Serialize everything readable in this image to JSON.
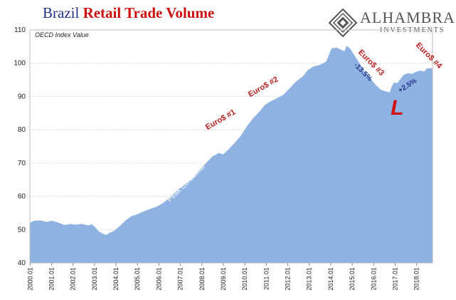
{
  "title": {
    "part1": "Brazil ",
    "part2": "Retail Trade Volume"
  },
  "logo": {
    "name": "ALHAMBRA",
    "sub": "INVESTMENTS",
    "icon": "alhambra-diamond-logo"
  },
  "colors": {
    "area": "#8eb2e2",
    "annot_red": "#b41e1e",
    "annot_blue": "#26328a",
    "L_red": "#d01010"
  },
  "chart_data": {
    "type": "area",
    "ylabel": "OECD Index Value",
    "ylim": [
      40,
      110
    ],
    "yticks": [
      "40",
      "50",
      "60",
      "70",
      "80",
      "90",
      "100",
      "110"
    ],
    "xticks": [
      "2000.01",
      "2001.01",
      "2002.01",
      "2003.01",
      "2004.01",
      "2005.01",
      "2006.01",
      "2007.01",
      "2008.01",
      "2009.01",
      "2010.01",
      "2011.01",
      "2012.01",
      "2013.01",
      "2014.01",
      "2015.01",
      "2016.01",
      "2017.01",
      "2018.01"
    ],
    "x_range": [
      2000.0,
      2018.75
    ],
    "grid": true,
    "series": [
      {
        "values": [
          [
            2000.0,
            52
          ],
          [
            2000.2,
            52.7
          ],
          [
            2000.5,
            52.8
          ],
          [
            2000.8,
            52.3
          ],
          [
            2001.0,
            52.7
          ],
          [
            2001.3,
            52.2
          ],
          [
            2001.6,
            51.4
          ],
          [
            2001.9,
            51.7
          ],
          [
            2002.1,
            51.5
          ],
          [
            2002.4,
            51.7
          ],
          [
            2002.7,
            51.3
          ],
          [
            2002.9,
            51.6
          ],
          [
            2003.1,
            50.3
          ],
          [
            2003.2,
            49.5
          ],
          [
            2003.4,
            48.8
          ],
          [
            2003.55,
            48.4
          ],
          [
            2003.7,
            49
          ],
          [
            2003.9,
            49.6
          ],
          [
            2004.1,
            50.6
          ],
          [
            2004.3,
            51.8
          ],
          [
            2004.5,
            53
          ],
          [
            2004.75,
            54.1
          ],
          [
            2005.0,
            54.6
          ],
          [
            2005.3,
            55.5
          ],
          [
            2005.6,
            56.2
          ],
          [
            2005.9,
            56.9
          ],
          [
            2006.2,
            58
          ],
          [
            2006.5,
            59.5
          ],
          [
            2006.75,
            61.2
          ],
          [
            2007.0,
            62.5
          ],
          [
            2007.3,
            64
          ],
          [
            2007.6,
            65.5
          ],
          [
            2007.9,
            68
          ],
          [
            2008.2,
            70
          ],
          [
            2008.5,
            72
          ],
          [
            2008.8,
            73
          ],
          [
            2009.0,
            72.6
          ],
          [
            2009.2,
            73.8
          ],
          [
            2009.5,
            75.8
          ],
          [
            2009.8,
            78
          ],
          [
            2010.1,
            81
          ],
          [
            2010.4,
            83.5
          ],
          [
            2010.7,
            85.5
          ],
          [
            2010.95,
            87.5
          ],
          [
            2011.2,
            88.5
          ],
          [
            2011.5,
            89.5
          ],
          [
            2011.8,
            90.5
          ],
          [
            2012.1,
            92.5
          ],
          [
            2012.4,
            94.5
          ],
          [
            2012.7,
            96
          ],
          [
            2012.95,
            98
          ],
          [
            2013.2,
            99
          ],
          [
            2013.5,
            99.5
          ],
          [
            2013.8,
            100.5
          ],
          [
            2014.05,
            104.5
          ],
          [
            2014.3,
            104.7
          ],
          [
            2014.5,
            104
          ],
          [
            2014.65,
            103.6
          ],
          [
            2014.75,
            105.3
          ],
          [
            2014.9,
            104.5
          ],
          [
            2015.1,
            102.5
          ],
          [
            2015.35,
            100
          ],
          [
            2015.6,
            97.5
          ],
          [
            2015.85,
            95.5
          ],
          [
            2016.1,
            93.5
          ],
          [
            2016.35,
            92
          ],
          [
            2016.6,
            91.5
          ],
          [
            2016.75,
            91.2
          ],
          [
            2016.85,
            93
          ],
          [
            2016.95,
            94.2
          ],
          [
            2017.1,
            94
          ],
          [
            2017.25,
            95.2
          ],
          [
            2017.4,
            96.5
          ],
          [
            2017.6,
            97
          ],
          [
            2017.8,
            96.8
          ],
          [
            2018.0,
            97.5
          ],
          [
            2018.2,
            97.8
          ],
          [
            2018.35,
            97.5
          ],
          [
            2018.5,
            98.5
          ],
          [
            2018.75,
            98.5
          ]
        ]
      }
    ],
    "annotations": [
      {
        "text": "Euro$ #1",
        "color": "red",
        "x": 2008.3,
        "y": 79.5,
        "angle": -30,
        "size": 11
      },
      {
        "text": "Euro$ #2",
        "color": "red",
        "x": 2010.3,
        "y": 89.5,
        "angle": -30,
        "size": 11
      },
      {
        "text": "Euro$ #3",
        "color": "red",
        "x": 2015.2,
        "y": 103,
        "angle": 45,
        "size": 11
      },
      {
        "text": "Euro$ #4",
        "color": "red",
        "x": 2017.9,
        "y": 105,
        "angle": 45,
        "size": 11
      },
      {
        "text": "-13.5%",
        "color": "blue",
        "x": 2015.0,
        "y": 99,
        "angle": 45,
        "size": 10
      },
      {
        "text": "+2.5%",
        "color": "blue",
        "x": 2017.3,
        "y": 90.8,
        "angle": -33,
        "size": 10
      },
      {
        "text": "Peak Eurodollar",
        "color": "white",
        "x": 2006.6,
        "y": 58,
        "angle": -45,
        "size": 10
      },
      {
        "text": "L",
        "color": "L",
        "x": 2016.8,
        "y": 83.6,
        "angle": 0,
        "size": 30
      }
    ]
  }
}
